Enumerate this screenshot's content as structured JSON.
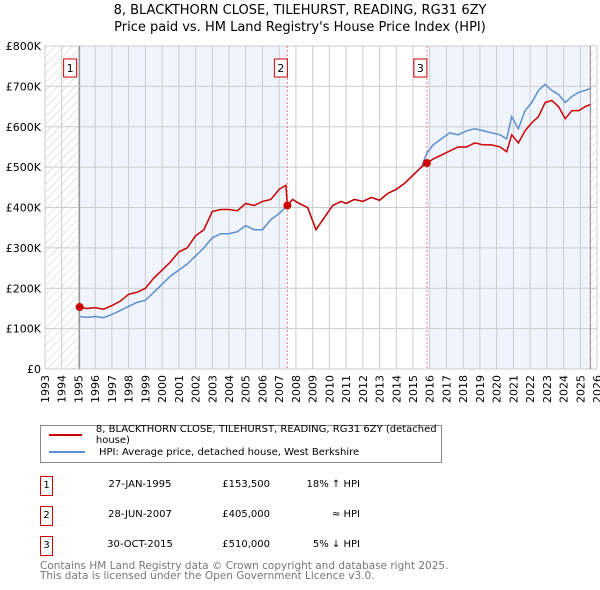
{
  "title": {
    "line1": "8, BLACKTHORN CLOSE, TILEHURST, READING, RG31 6ZY",
    "line2": "Price paid vs. HM Land Registry's House Price Index (HPI)"
  },
  "chart_data": {
    "type": "line",
    "xlim": [
      1993,
      2026
    ],
    "ylim": [
      0,
      800000
    ],
    "x_ticks": [
      "1993",
      "1994",
      "1995",
      "1996",
      "1997",
      "1998",
      "1999",
      "2000",
      "2001",
      "2002",
      "2003",
      "2004",
      "2005",
      "2006",
      "2007",
      "2008",
      "2009",
      "2010",
      "2011",
      "2012",
      "2013",
      "2014",
      "2015",
      "2016",
      "2017",
      "2018",
      "2019",
      "2020",
      "2021",
      "2022",
      "2023",
      "2024",
      "2025",
      "2026"
    ],
    "y_ticks": [
      {
        "v": 0,
        "label": "£0"
      },
      {
        "v": 100000,
        "label": "£100K"
      },
      {
        "v": 200000,
        "label": "£200K"
      },
      {
        "v": 300000,
        "label": "£300K"
      },
      {
        "v": 400000,
        "label": "£400K"
      },
      {
        "v": 500000,
        "label": "£500K"
      },
      {
        "v": 600000,
        "label": "£600K"
      },
      {
        "v": 700000,
        "label": "£700K"
      },
      {
        "v": 800000,
        "label": "£800K"
      }
    ],
    "grid": true,
    "series": [
      {
        "name": "8, BLACKTHORN CLOSE, TILEHURST, READING, RG31 6ZY (detached house)",
        "color": "#cc0000",
        "x": [
          1995.07,
          1995.5,
          1996,
          1996.5,
          1997,
          1997.5,
          1998,
          1998.5,
          1999,
          1999.5,
          2000,
          2000.5,
          2001,
          2001.5,
          2002,
          2002.5,
          2003,
          2003.5,
          2004,
          2004.5,
          2005,
          2005.5,
          2006,
          2006.5,
          2007,
          2007.4,
          2007.49,
          2007.8,
          2008.2,
          2008.7,
          2009.2,
          2009.7,
          2010.2,
          2010.7,
          2011,
          2011.5,
          2012,
          2012.5,
          2013,
          2013.5,
          2014,
          2014.5,
          2015,
          2015.5,
          2015.83,
          2016.2,
          2016.7,
          2017.2,
          2017.7,
          2018.2,
          2018.7,
          2019.2,
          2019.7,
          2020.2,
          2020.6,
          2020.9,
          2021.3,
          2021.7,
          2022.1,
          2022.5,
          2022.9,
          2023.3,
          2023.7,
          2024.1,
          2024.5,
          2024.9,
          2025.3,
          2025.6
        ],
        "y": [
          153500,
          150000,
          152000,
          148000,
          157000,
          168000,
          185000,
          190000,
          200000,
          225000,
          245000,
          265000,
          290000,
          300000,
          330000,
          345000,
          390000,
          395000,
          395000,
          392000,
          410000,
          405000,
          415000,
          420000,
          445000,
          455000,
          405000,
          420000,
          410000,
          400000,
          345000,
          375000,
          405000,
          415000,
          410000,
          420000,
          415000,
          425000,
          418000,
          435000,
          445000,
          460000,
          480000,
          500000,
          510000,
          520000,
          530000,
          540000,
          550000,
          550000,
          560000,
          555000,
          555000,
          550000,
          538000,
          580000,
          560000,
          590000,
          610000,
          625000,
          660000,
          665000,
          650000,
          620000,
          640000,
          640000,
          650000,
          655000
        ]
      },
      {
        "name": "HPI: Average price, detached house, West Berkshire",
        "color": "#5b8fd0",
        "x": [
          1995.07,
          1995.5,
          1996,
          1996.5,
          1997,
          1997.5,
          1998,
          1998.5,
          1999,
          1999.5,
          2000,
          2000.5,
          2001,
          2001.5,
          2002,
          2002.5,
          2003,
          2003.5,
          2004,
          2004.5,
          2005,
          2005.5,
          2006,
          2006.5,
          2007,
          2007.49,
          2007.8,
          2008.2,
          2008.7,
          2009.2,
          2009.7,
          2010.2,
          2010.7,
          2011,
          2011.5,
          2012,
          2012.5,
          2013,
          2013.5,
          2014,
          2014.5,
          2015,
          2015.5,
          2015.83,
          2016.2,
          2016.7,
          2017.2,
          2017.7,
          2018.2,
          2018.7,
          2019.2,
          2019.7,
          2020.2,
          2020.6,
          2020.9,
          2021.3,
          2021.7,
          2022.1,
          2022.5,
          2022.9,
          2023.3,
          2023.7,
          2024.1,
          2024.5,
          2024.9,
          2025.3,
          2025.6
        ],
        "y": [
          130000,
          128000,
          130000,
          127000,
          135000,
          145000,
          155000,
          165000,
          170000,
          190000,
          210000,
          230000,
          245000,
          260000,
          280000,
          300000,
          325000,
          335000,
          335000,
          340000,
          355000,
          345000,
          345000,
          370000,
          385000,
          405000,
          420000,
          410000,
          400000,
          345000,
          375000,
          405000,
          415000,
          410000,
          420000,
          415000,
          425000,
          418000,
          435000,
          445000,
          460000,
          480000,
          500000,
          535000,
          555000,
          570000,
          585000,
          580000,
          590000,
          595000,
          590000,
          585000,
          580000,
          570000,
          625000,
          595000,
          640000,
          660000,
          690000,
          705000,
          690000,
          680000,
          660000,
          675000,
          685000,
          690000,
          695000
        ]
      }
    ],
    "annotations": [
      {
        "label": "1",
        "x": 1995.07,
        "y": 153500
      },
      {
        "label": "2",
        "x": 2007.49,
        "y": 405000
      },
      {
        "label": "3",
        "x": 2015.83,
        "y": 510000
      }
    ],
    "data_end": 2025.6
  },
  "legend": {
    "red": "8, BLACKTHORN CLOSE, TILEHURST, READING, RG31 6ZY (detached house)",
    "blue": "HPI: Average price, detached house, West Berkshire"
  },
  "sales": [
    {
      "num": "1",
      "date": "27-JAN-1995",
      "price": "£153,500",
      "hpi": "18% ↑ HPI"
    },
    {
      "num": "2",
      "date": "28-JUN-2007",
      "price": "£405,000",
      "hpi": "≈ HPI"
    },
    {
      "num": "3",
      "date": "30-OCT-2015",
      "price": "£510,000",
      "hpi": "5% ↓ HPI"
    }
  ],
  "footer": {
    "line1": "Contains HM Land Registry data © Crown copyright and database right 2025.",
    "line2": "This data is licensed under the Open Government Licence v3.0."
  }
}
